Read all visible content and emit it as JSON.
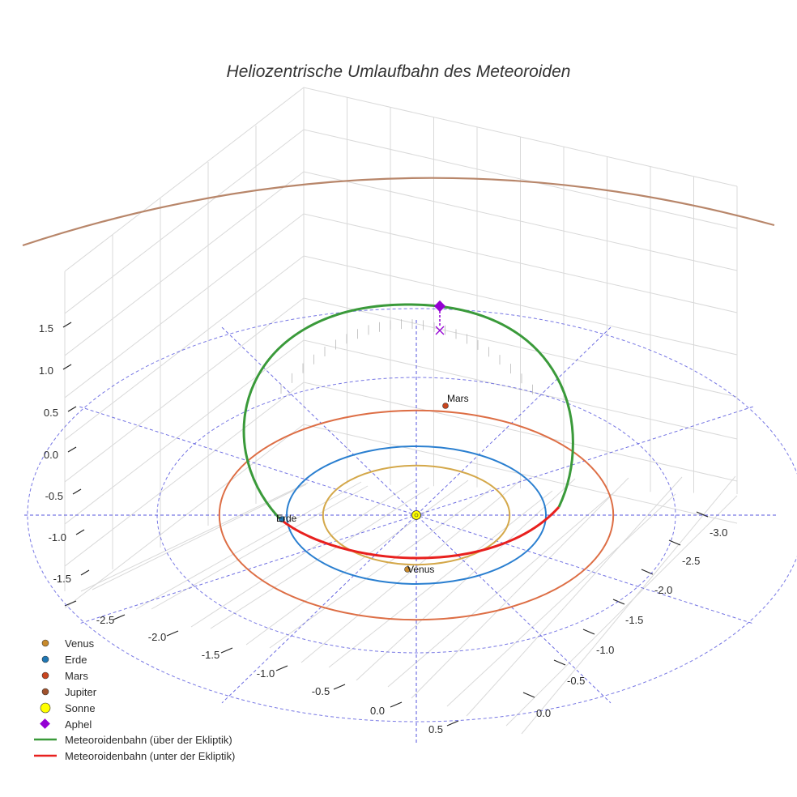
{
  "chart_data": {
    "type": "line",
    "title": "Heliozentrische Umlaufbahn des Meteoroiden",
    "axes": {
      "x_ticks": [
        "-2.5",
        "-2.0",
        "-1.5",
        "-1.0",
        "-0.5",
        "0.0",
        "0.5"
      ],
      "y_ticks": [
        "-3.0",
        "-2.5",
        "-2.0",
        "-1.5",
        "-1.0",
        "-0.5",
        "0.0"
      ],
      "z_ticks": [
        "1.5",
        "1.0",
        "0.5",
        "0.0",
        "-0.5",
        "-1.0",
        "-1.5"
      ],
      "grid": true
    },
    "bodies": {
      "venus": {
        "name": "Venus",
        "label": "Venus",
        "orbit_radius_au": 0.72,
        "color": "#c88a2b",
        "orbit_color": "#d4a84a"
      },
      "erde": {
        "name": "Erde",
        "label": "Erde",
        "orbit_radius_au": 1.0,
        "color": "#1f77b4",
        "orbit_color": "#2a7fd0"
      },
      "mars": {
        "name": "Mars",
        "label": "Mars",
        "orbit_radius_au": 1.52,
        "color": "#c8451f",
        "orbit_color": "#dd6e45"
      },
      "jupiter": {
        "name": "Jupiter",
        "label": "",
        "orbit_radius_au": 5.2,
        "color": "#a0522d",
        "orbit_color": "#b8866a"
      },
      "sonne": {
        "name": "Sonne",
        "color": "#ffff00"
      }
    },
    "aphel": {
      "name": "Aphel",
      "color": "#9400d3"
    },
    "reference_grid": {
      "circle_radii_au": [
        2.0,
        3.0
      ],
      "color": "#5555dd"
    },
    "series": [
      {
        "name": "Meteoroidenbahn (über der Ekliptik)",
        "color": "#3a9a3a"
      },
      {
        "name": "Meteoroidenbahn (unter der Ekliptik)",
        "color": "#e8201e"
      }
    ],
    "legend": {
      "position": "bottom-left",
      "entries": [
        {
          "name": "Venus",
          "marker": "circle",
          "color": "#c88a2b"
        },
        {
          "name": "Erde",
          "marker": "circle",
          "color": "#1f77b4"
        },
        {
          "name": "Mars",
          "marker": "circle",
          "color": "#c8451f"
        },
        {
          "name": "Jupiter",
          "marker": "circle",
          "color": "#a0522d"
        },
        {
          "name": "Sonne",
          "marker": "circle-big",
          "color": "#ffff00"
        },
        {
          "name": "Aphel",
          "marker": "diamond",
          "color": "#9400d3"
        },
        {
          "name": "Meteoroidenbahn (über der Ekliptik)",
          "marker": "line",
          "color": "#3a9a3a"
        },
        {
          "name": "Meteoroidenbahn (unter der Ekliptik)",
          "marker": "line",
          "color": "#e8201e"
        }
      ]
    }
  }
}
